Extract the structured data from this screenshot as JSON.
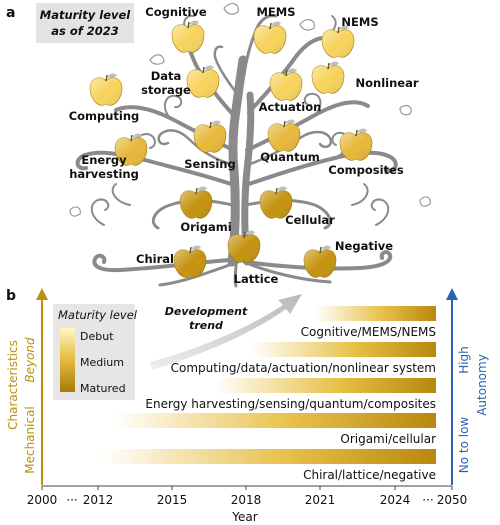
{
  "panel_a": {
    "label": "a",
    "maturity_box": {
      "line1": "Maturity level",
      "line2": "as of 2023"
    },
    "apples": [
      {
        "id": "cognitive",
        "text": "Cognitive",
        "level": "Debut"
      },
      {
        "id": "mems",
        "text": "MEMS",
        "level": "Debut"
      },
      {
        "id": "nems",
        "text": "NEMS",
        "level": "Debut"
      },
      {
        "id": "data-storage",
        "text": "Data storage",
        "level": "Debut"
      },
      {
        "id": "nonlinear",
        "text": "Nonlinear",
        "level": "Debut"
      },
      {
        "id": "computing",
        "text": "Computing",
        "level": "Debut"
      },
      {
        "id": "actuation",
        "text": "Actuation",
        "level": "Debut"
      },
      {
        "id": "energy-harvesting",
        "text": "Energy harvesting",
        "level": "Medium"
      },
      {
        "id": "sensing",
        "text": "Sensing",
        "level": "Medium"
      },
      {
        "id": "quantum",
        "text": "Quantum",
        "level": "Medium"
      },
      {
        "id": "composites",
        "text": "Composites",
        "level": "Medium"
      },
      {
        "id": "origami",
        "text": "Origami",
        "level": "Matured"
      },
      {
        "id": "cellular",
        "text": "Cellular",
        "level": "Matured"
      },
      {
        "id": "chiral",
        "text": "Chiral",
        "level": "Matured"
      },
      {
        "id": "lattice",
        "text": "Lattice",
        "level": "Matured"
      },
      {
        "id": "negative",
        "text": "Negative",
        "level": "Matured"
      }
    ],
    "colors": {
      "debut": "#f7d35c",
      "medium": "#e6b83a",
      "matured": "#c4930f",
      "tree": "#888888"
    }
  },
  "panel_b": {
    "label": "b",
    "legend": {
      "title": "Maturity level",
      "levels": [
        "Debut",
        "Medium",
        "Matured"
      ]
    },
    "trend_label": {
      "line1": "Development",
      "line2": "trend"
    },
    "left_axis": {
      "top": "Beyond",
      "line": "Characteristics",
      "bottom": "Mechanical",
      "color": "#b8900e"
    },
    "right_axis": {
      "top": "High",
      "line": "Autonomy",
      "bottom": "No to low",
      "color": "#2a63b5"
    },
    "x_axis": {
      "title": "Year",
      "ticks": [
        "2000",
        "2012",
        "2015",
        "2018",
        "2021",
        "2024",
        "2050"
      ],
      "ellipsis": [
        "···",
        "···"
      ]
    },
    "bars": [
      {
        "label": "Cognitive/MEMS/NEMS",
        "start": 2020.8
      },
      {
        "label": "Computing/data/actuation/nonlinear system",
        "start": 2018.2
      },
      {
        "label": "Energy harvesting/sensing/quantum/composites",
        "start": 2016.7
      },
      {
        "label": "Origami/cellular",
        "start": 2012.6
      },
      {
        "label": "Chiral/lattice/negative",
        "start": 2012.1
      }
    ]
  }
}
